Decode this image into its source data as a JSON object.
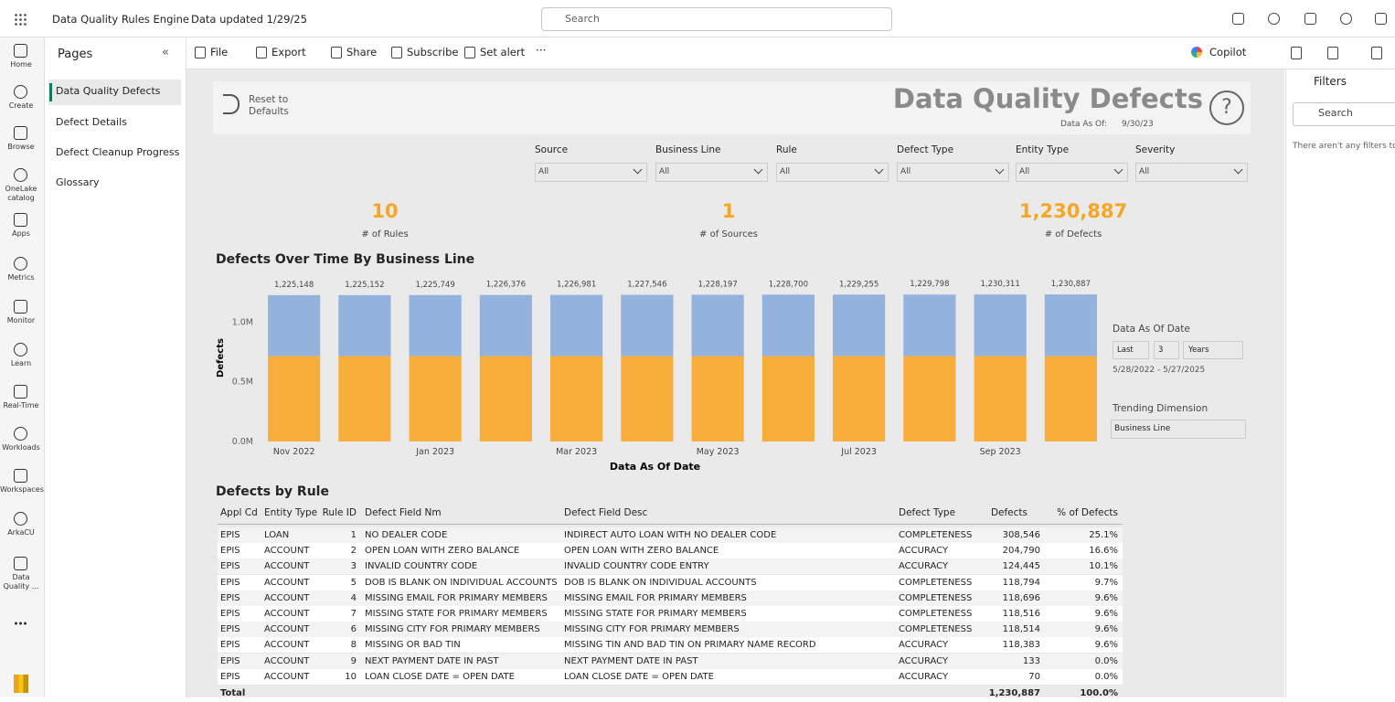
{
  "top_bar": {
    "app_name": "Data Quality Rules Engine",
    "data_updated": "Data updated 1/29/25",
    "search_placeholder": "Search"
  },
  "nav": [
    "Home",
    "Create",
    "Browse",
    "OneLake catalog",
    "Apps",
    "Metrics",
    "Monitor",
    "Learn",
    "Real-Time",
    "Workloads",
    "Workspaces",
    "ArkaCU",
    "Data Quality ..."
  ],
  "pages": {
    "title": "Pages",
    "items": [
      "Data Quality Defects",
      "Defect Details",
      "Defect Cleanup Progress",
      "Glossary"
    ]
  },
  "toolbar": {
    "items": [
      "File",
      "Export",
      "Share",
      "Subscribe",
      "Set alert"
    ],
    "copilot": "Copilot"
  },
  "filters_pane": {
    "title": "Filters",
    "search": "Search",
    "empty": "There aren't any filters to"
  },
  "report": {
    "reset": "Reset to Defaults",
    "title": "Data Quality Defects",
    "data_as_of_label": "Data As Of:",
    "data_as_of": "9/30/23"
  },
  "slicers": [
    {
      "label": "Source",
      "value": "All"
    },
    {
      "label": "Business Line",
      "value": "All"
    },
    {
      "label": "Rule",
      "value": "All"
    },
    {
      "label": "Defect Type",
      "value": "All"
    },
    {
      "label": "Entity Type",
      "value": "All"
    },
    {
      "label": "Severity",
      "value": "All"
    }
  ],
  "kpis": [
    {
      "value": "10",
      "label": "# of Rules"
    },
    {
      "value": "1",
      "label": "# of Sources"
    },
    {
      "value": "1,230,887",
      "label": "# of Defects"
    }
  ],
  "date_slicer": {
    "title": "Data As Of Date",
    "mode": "Last",
    "count": "3",
    "unit": "Years",
    "range": "5/28/2022 - 5/27/2025"
  },
  "trending": {
    "title": "Trending Dimension",
    "value": "Business Line"
  },
  "chart_data": {
    "type": "bar",
    "stacked": true,
    "title": "Defects Over Time By Business Line",
    "x_label": "Data As Of Date",
    "y_label": "Defects",
    "categories": [
      "Nov 2022",
      null,
      "Jan 2023",
      null,
      "Mar 2023",
      null,
      "May 2023",
      null,
      "Jul 2023",
      null,
      "Sep 2023",
      null
    ],
    "series": [
      {
        "color": "#f9ae3b",
        "values": [
          715000,
          715000,
          715000,
          715000,
          715000,
          715000,
          715000,
          715000,
          715000,
          715000,
          715000,
          715000
        ]
      },
      {
        "color": "#93b2de",
        "values": [
          510148,
          510152,
          510749,
          511376,
          511981,
          512546,
          513197,
          513700,
          514255,
          514798,
          515311,
          515887
        ]
      }
    ],
    "totals": {
      "values": [
        1225148,
        1225152,
        1225749,
        1226376,
        1226981,
        1227546,
        1228197,
        1228700,
        1229255,
        1229798,
        1230311,
        1230887
      ],
      "value_labels": [
        "1,225,148",
        "1,225,152",
        "1,225,749",
        "1,226,376",
        "1,226,981",
        "1,227,546",
        "1,228,197",
        "1,228,700",
        "1,229,255",
        "1,229,798",
        "1,230,311",
        "1,230,887"
      ]
    },
    "ylim": [
      0,
      1400000
    ],
    "yticks": [
      {
        "value": 0,
        "label": "0.0M"
      },
      {
        "value": 500000,
        "label": "0.5M"
      },
      {
        "value": 1000000,
        "label": "1.0M"
      }
    ]
  },
  "table": {
    "title": "Defects by Rule",
    "columns": [
      "Appl Cd",
      "Entity Type",
      "Rule ID",
      "Defect Field Nm",
      "Defect Field Desc",
      "Defect Type",
      "Defects",
      "% of Defects"
    ],
    "rows": [
      [
        "EPIS",
        "LOAN",
        "1",
        "NO DEALER CODE",
        "INDIRECT AUTO LOAN WITH NO DEALER CODE",
        "COMPLETENESS",
        "308,546",
        "25.1%"
      ],
      [
        "EPIS",
        "ACCOUNT",
        "2",
        "OPEN LOAN WITH ZERO BALANCE",
        "OPEN LOAN WITH ZERO BALANCE",
        "ACCURACY",
        "204,790",
        "16.6%"
      ],
      [
        "EPIS",
        "ACCOUNT",
        "3",
        "INVALID COUNTRY CODE",
        "INVALID COUNTRY CODE ENTRY",
        "ACCURACY",
        "124,445",
        "10.1%"
      ],
      [
        "EPIS",
        "ACCOUNT",
        "5",
        "DOB IS BLANK ON INDIVIDUAL ACCOUNTS",
        "DOB IS BLANK ON INDIVIDUAL ACCOUNTS",
        "COMPLETENESS",
        "118,794",
        "9.7%"
      ],
      [
        "EPIS",
        "ACCOUNT",
        "4",
        "MISSING EMAIL FOR PRIMARY MEMBERS",
        "MISSING EMAIL FOR PRIMARY MEMBERS",
        "COMPLETENESS",
        "118,696",
        "9.6%"
      ],
      [
        "EPIS",
        "ACCOUNT",
        "7",
        "MISSING STATE FOR PRIMARY MEMBERS",
        "MISSING STATE FOR PRIMARY MEMBERS",
        "COMPLETENESS",
        "118,516",
        "9.6%"
      ],
      [
        "EPIS",
        "ACCOUNT",
        "6",
        "MISSING CITY FOR PRIMARY MEMBERS",
        "MISSING CITY FOR PRIMARY MEMBERS",
        "COMPLETENESS",
        "118,514",
        "9.6%"
      ],
      [
        "EPIS",
        "ACCOUNT",
        "8",
        "MISSING OR BAD TIN",
        "MISSING TIN AND BAD TIN ON PRIMARY NAME RECORD",
        "ACCURACY",
        "118,383",
        "9.6%"
      ],
      [
        "EPIS",
        "ACCOUNT",
        "9",
        "NEXT PAYMENT DATE IN PAST",
        "NEXT PAYMENT DATE IN PAST",
        "ACCURACY",
        "133",
        "0.0%"
      ],
      [
        "EPIS",
        "ACCOUNT",
        "10",
        "LOAN CLOSE DATE = OPEN DATE",
        "LOAN CLOSE DATE = OPEN DATE",
        "ACCURACY",
        "70",
        "0.0%"
      ]
    ],
    "total": [
      "Total",
      "1,230,887",
      "100.0%"
    ]
  }
}
